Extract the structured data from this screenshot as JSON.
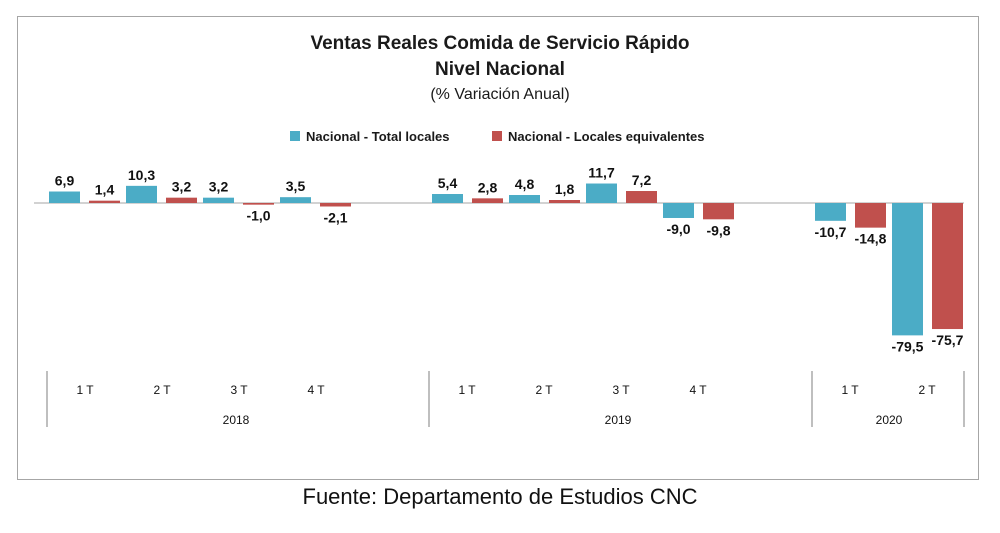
{
  "chart_data": {
    "type": "bar",
    "title": "Ventas Reales Comida de Servicio Rápido",
    "title_line2": "Nivel Nacional",
    "subtitle": "(% Variación Anual)",
    "legend_position": "top-center",
    "grid": false,
    "categories": [
      "1 T",
      "2 T",
      "3 T",
      "4 T",
      "1 T",
      "2 T",
      "3 T",
      "4 T",
      "1 T",
      "2 T"
    ],
    "groups": [
      {
        "label": "2018",
        "quarters": [
          "1 T",
          "2 T",
          "3 T",
          "4 T"
        ]
      },
      {
        "label": "2019",
        "quarters": [
          "1 T",
          "2 T",
          "3 T",
          "4 T"
        ]
      },
      {
        "label": "2020",
        "quarters": [
          "1 T",
          "2 T"
        ]
      }
    ],
    "series": [
      {
        "name": "Nacional - Total locales",
        "color": "#4bacc6",
        "values": [
          6.9,
          10.3,
          3.2,
          3.5,
          5.4,
          4.8,
          11.7,
          -9.0,
          -10.7,
          -79.5
        ],
        "labels": [
          "6,9",
          "10,3",
          "3,2",
          "3,5",
          "5,4",
          "4,8",
          "11,7",
          "-9,0",
          "-10,7",
          "-79,5"
        ]
      },
      {
        "name": "Nacional - Locales equivalentes",
        "color": "#c0504d",
        "values": [
          1.4,
          3.2,
          -1.0,
          -2.1,
          2.8,
          1.8,
          7.2,
          -9.8,
          -14.8,
          -75.7
        ],
        "labels": [
          "1,4",
          "3,2",
          "-1,0",
          "-2,1",
          "2,8",
          "1,8",
          "7,2",
          "-9,8",
          "-14,8",
          "-75,7"
        ]
      }
    ]
  },
  "source_note": "Fuente: Departamento de Estudios CNC"
}
